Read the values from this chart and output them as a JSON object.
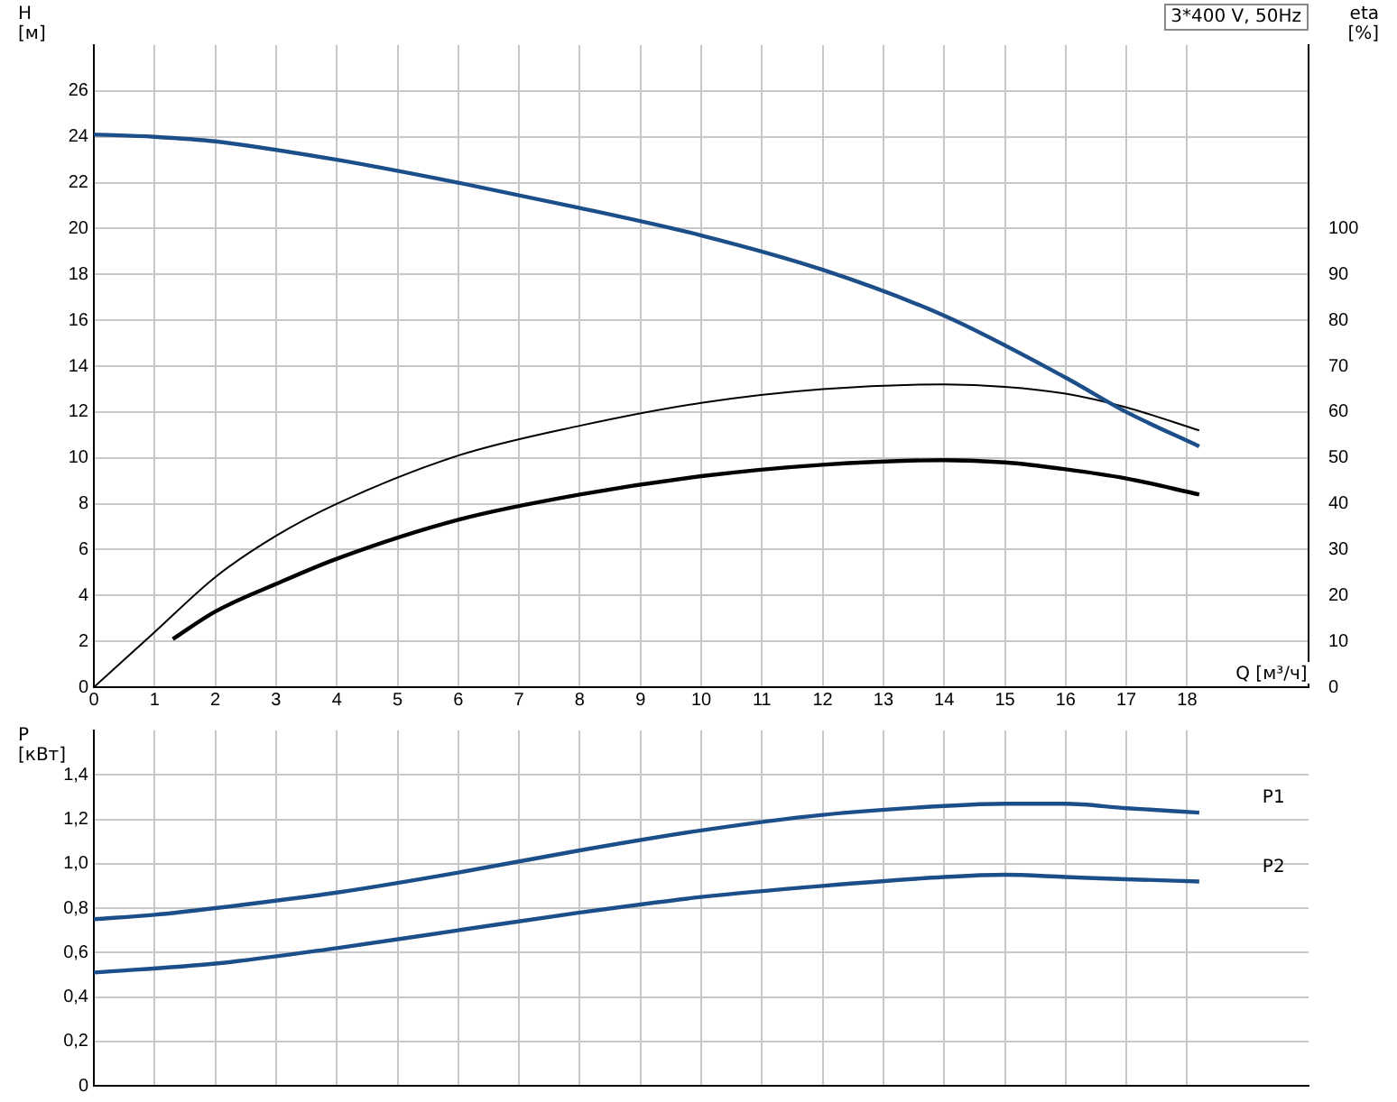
{
  "chart_data": [
    {
      "type": "line",
      "title": "3*400 V, 50Hz",
      "xlabel": "Q [м³/ч]",
      "ylabel": "H\n[м]",
      "y2label": "eta\n[%]",
      "xlim": [
        0,
        20
      ],
      "xticks": [
        0,
        1,
        2,
        3,
        4,
        5,
        6,
        7,
        8,
        9,
        10,
        11,
        12,
        13,
        14,
        15,
        16,
        17,
        18
      ],
      "ylim": [
        0,
        28
      ],
      "yticks": [
        0,
        2,
        4,
        6,
        8,
        10,
        12,
        14,
        16,
        18,
        20,
        22,
        24,
        26
      ],
      "y2lim": [
        0,
        140
      ],
      "y2ticks": [
        0,
        10,
        20,
        30,
        40,
        50,
        60,
        70,
        80,
        90,
        100
      ],
      "grid": true,
      "legend": false,
      "marker": "none",
      "line_style": "solid",
      "series": [
        {
          "color": "#1c4f8a",
          "x": [
            0,
            1,
            2,
            4,
            6,
            8,
            10,
            12,
            14,
            16,
            17,
            18.2
          ],
          "values": [
            24.1,
            24.0,
            23.8,
            23.0,
            22.0,
            20.9,
            19.7,
            18.2,
            16.2,
            13.5,
            12.0,
            10.5
          ]
        },
        {
          "color": "#000000",
          "axis": "y2",
          "x": [
            0,
            1,
            2,
            3,
            4,
            6,
            8,
            10,
            12,
            14,
            15,
            16,
            17,
            18.2
          ],
          "values": [
            0,
            12,
            24,
            33,
            40,
            50.5,
            57,
            62,
            65,
            66,
            65.5,
            64,
            61,
            56
          ]
        },
        {
          "color": "#000000",
          "axis": "y2",
          "x": [
            1.3,
            2,
            3,
            4,
            6,
            8,
            10,
            12,
            14,
            15,
            16,
            17,
            18.2
          ],
          "values": [
            10.5,
            16.5,
            22.5,
            28,
            36.5,
            42,
            46,
            48.5,
            49.5,
            49,
            47.5,
            45.5,
            42
          ]
        }
      ]
    },
    {
      "type": "line",
      "ylabel": "P\n[кВт]",
      "xlim": [
        0,
        20
      ],
      "xticks": [
        0,
        1,
        2,
        3,
        4,
        5,
        6,
        7,
        8,
        9,
        10,
        11,
        12,
        13,
        14,
        15,
        16,
        17,
        18
      ],
      "ylim": [
        0,
        1.6
      ],
      "yticks": [
        {
          "value": 0,
          "label": "0"
        },
        {
          "value": 0.2,
          "label": "0,2"
        },
        {
          "value": 0.4,
          "label": "0,4"
        },
        {
          "value": 0.6,
          "label": "0,6"
        },
        {
          "value": 0.8,
          "label": "0,8"
        },
        {
          "value": 1,
          "label": "1,0"
        },
        {
          "value": 1.2,
          "label": "1,2"
        },
        {
          "value": 1.4,
          "label": "1,4"
        }
      ],
      "grid": true,
      "legend": false,
      "marker": "none",
      "line_style": "solid",
      "tick_labels": "y",
      "series": [
        {
          "name": "P1",
          "color": "#1c4f8a",
          "x": [
            0,
            1,
            2,
            4,
            6,
            8,
            10,
            12,
            14,
            15,
            16,
            17,
            18.2
          ],
          "values": [
            0.75,
            0.77,
            0.8,
            0.87,
            0.96,
            1.06,
            1.15,
            1.22,
            1.26,
            1.27,
            1.27,
            1.25,
            1.23
          ]
        },
        {
          "name": "P2",
          "color": "#1c4f8a",
          "x": [
            0,
            2,
            4,
            6,
            8,
            10,
            12,
            14,
            15,
            16,
            17,
            18.2
          ],
          "values": [
            0.51,
            0.55,
            0.62,
            0.7,
            0.78,
            0.85,
            0.9,
            0.94,
            0.95,
            0.94,
            0.93,
            0.92
          ]
        }
      ]
    }
  ]
}
